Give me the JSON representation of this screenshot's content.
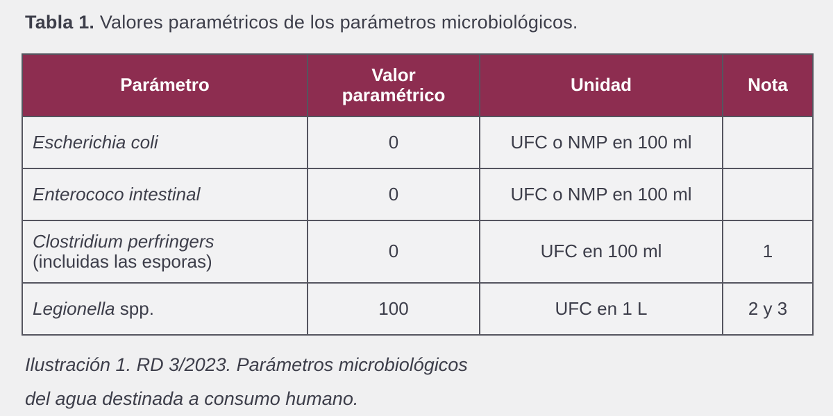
{
  "colors": {
    "page_background": "#f0f0f1",
    "cell_background": "#f2f2f3",
    "header_background": "#8d2d50",
    "header_text": "#ffffff",
    "body_text": "#3d3e4a",
    "border": "#55555f"
  },
  "title": {
    "bold_part": "Tabla 1.",
    "rest_part": " Valores paramétricos de los parámetros microbiológicos."
  },
  "table": {
    "columns": [
      "Parámetro",
      "Valor paramétrico",
      "Unidad",
      "Nota"
    ],
    "rows": [
      {
        "parameter_segments": [
          {
            "text": "Escherichia coli",
            "italic": true
          }
        ],
        "value": "0",
        "unit": "UFC o NMP en 100 ml",
        "note": "",
        "tall": false
      },
      {
        "parameter_segments": [
          {
            "text": "Enterococo intestinal",
            "italic": true
          }
        ],
        "value": "0",
        "unit": "UFC o NMP en 100 ml",
        "note": "",
        "tall": false
      },
      {
        "parameter_segments": [
          {
            "text": "Clostridium perfringers",
            "italic": true
          },
          {
            "text": "(incluidas las esporas)",
            "italic": false,
            "newline_before": true
          }
        ],
        "value": "0",
        "unit": "UFC en 100 ml",
        "note": "1",
        "tall": true
      },
      {
        "parameter_segments": [
          {
            "text": "Legionella",
            "italic": true
          },
          {
            "text": " spp.",
            "italic": false
          }
        ],
        "value": "100",
        "unit": "UFC en 1 L",
        "note": "2 y 3",
        "tall": false
      }
    ]
  },
  "caption": {
    "line1": "Ilustración 1. RD 3/2023. Parámetros microbiológicos",
    "line2": "del agua destinada a consumo humano."
  }
}
